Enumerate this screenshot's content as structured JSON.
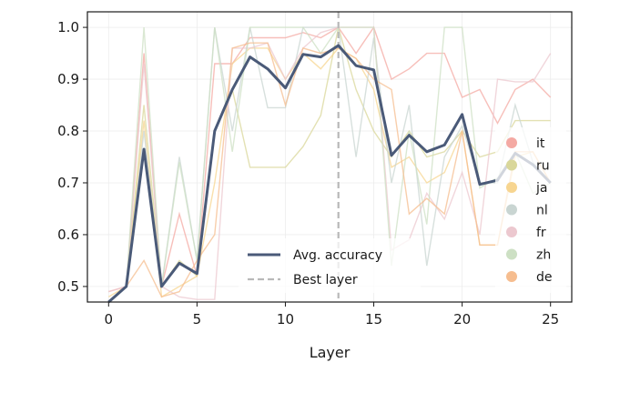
{
  "chart_data": {
    "type": "line",
    "xlabel": "Layer",
    "ylabel": "",
    "xlim": [
      -1.2,
      26.2
    ],
    "ylim": [
      0.47,
      1.03
    ],
    "xticks": [
      0,
      5,
      10,
      15,
      20,
      25
    ],
    "yticks": [
      0.5,
      0.6,
      0.7,
      0.8,
      0.9,
      1.0
    ],
    "ytick_labels": [
      "0.5",
      "0.6",
      "0.7",
      "0.8",
      "0.9",
      "1.0"
    ],
    "grid": true,
    "best_layer": {
      "label": "Best layer",
      "x": 13,
      "color": "#b9b9b9"
    },
    "main_series": {
      "name": "Avg. accuracy",
      "color": "#4a5a78",
      "x": [
        0,
        1,
        2,
        3,
        4,
        5,
        6,
        7,
        8,
        9,
        10,
        11,
        12,
        13,
        14,
        15,
        16,
        17,
        18,
        19,
        20,
        21,
        22,
        23,
        24,
        25
      ],
      "values": [
        0.47,
        0.5,
        0.765,
        0.5,
        0.545,
        0.525,
        0.8,
        0.88,
        0.943,
        0.92,
        0.883,
        0.948,
        0.943,
        0.965,
        0.926,
        0.918,
        0.753,
        0.792,
        0.76,
        0.773,
        0.832,
        0.697,
        0.705,
        0.757,
        0.735,
        0.7
      ]
    },
    "lang_series": [
      {
        "name": "it",
        "color": "#f4a9a3",
        "values": [
          0.49,
          0.5,
          0.95,
          0.5,
          0.64,
          0.52,
          0.93,
          0.93,
          0.98,
          0.98,
          0.98,
          0.99,
          0.98,
          1.0,
          0.95,
          1.0,
          0.9,
          0.92,
          0.95,
          0.95,
          0.865,
          0.88,
          0.815,
          0.88,
          0.9,
          0.865
        ]
      },
      {
        "name": "ru",
        "color": "#d9d79a",
        "values": [
          0.47,
          0.5,
          0.85,
          0.5,
          0.55,
          0.52,
          0.8,
          0.88,
          0.73,
          0.73,
          0.73,
          0.77,
          0.83,
          1.0,
          0.88,
          0.8,
          0.75,
          0.8,
          0.75,
          0.76,
          0.8,
          0.75,
          0.76,
          0.82,
          0.82,
          0.82
        ]
      },
      {
        "name": "ja",
        "color": "#f7d590",
        "values": [
          0.48,
          0.5,
          0.82,
          0.48,
          0.5,
          0.52,
          0.7,
          0.93,
          0.96,
          0.96,
          0.9,
          0.95,
          0.92,
          0.96,
          0.94,
          0.88,
          0.73,
          0.75,
          0.7,
          0.72,
          0.8,
          0.58,
          0.58,
          0.75,
          0.76,
          0.7
        ]
      },
      {
        "name": "nl",
        "color": "#c9d5d2",
        "values": [
          0.47,
          0.5,
          0.8,
          0.5,
          0.75,
          0.55,
          1.0,
          0.8,
          1.0,
          0.845,
          0.845,
          1.0,
          1.0,
          1.0,
          0.75,
          0.98,
          0.7,
          0.85,
          0.54,
          0.75,
          0.81,
          0.7,
          0.7,
          0.85,
          0.74,
          0.7
        ]
      },
      {
        "name": "fr",
        "color": "#ecc8cf",
        "values": [
          0.49,
          0.5,
          0.93,
          0.5,
          0.48,
          0.475,
          0.475,
          0.96,
          0.96,
          0.97,
          0.9,
          0.96,
          0.99,
          1.0,
          1.0,
          1.0,
          0.57,
          0.59,
          0.68,
          0.63,
          0.72,
          0.6,
          0.9,
          0.895,
          0.895,
          0.95
        ]
      },
      {
        "name": "zh",
        "color": "#cde0c4",
        "values": [
          0.47,
          0.5,
          1.0,
          0.5,
          0.74,
          0.55,
          1.0,
          0.76,
          1.0,
          1.0,
          1.0,
          1.0,
          0.95,
          1.0,
          1.0,
          1.0,
          0.54,
          0.8,
          0.62,
          1.0,
          1.0,
          0.69,
          0.71,
          0.76,
          0.68,
          0.7
        ]
      },
      {
        "name": "de",
        "color": "#f6bd8f",
        "values": [
          0.47,
          0.5,
          0.55,
          0.48,
          0.49,
          0.55,
          0.6,
          0.96,
          0.97,
          0.97,
          0.85,
          0.96,
          0.95,
          0.96,
          0.94,
          0.9,
          0.88,
          0.64,
          0.67,
          0.64,
          0.8,
          0.58,
          0.58,
          0.76,
          0.76,
          0.7
        ]
      }
    ]
  }
}
